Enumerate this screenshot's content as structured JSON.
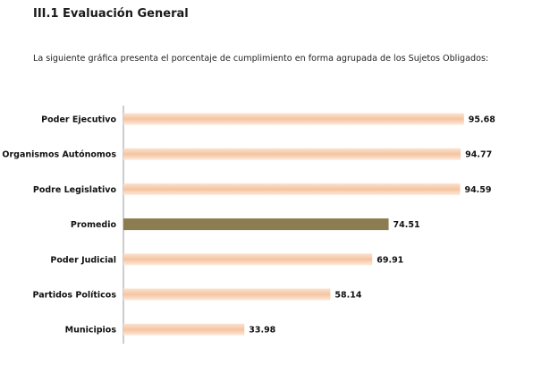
{
  "page": {
    "heading": "III.1 Evaluación General",
    "intro": "La siguiente gráfica presenta el porcentaje de cumplimiento en forma agrupada de los Sujetos  Obligados:"
  },
  "colors": {
    "bar": "#f5c7a6",
    "bar_highlight": "#8b7d4f",
    "axis": "#999999",
    "label": "#111111"
  },
  "chart_data": {
    "type": "bar",
    "orientation": "horizontal",
    "title": "",
    "xlabel": "",
    "ylabel": "",
    "xlim": [
      0,
      100
    ],
    "grid": false,
    "legend": "none",
    "categories": [
      "Poder Ejecutivo",
      "Organismos Autónomos",
      "Podre Legislativo",
      "Promedio",
      "Poder Judicial",
      "Partidos Políticos",
      "Municipios"
    ],
    "values": [
      95.68,
      94.77,
      94.59,
      74.51,
      69.91,
      58.14,
      33.98
    ],
    "value_labels": [
      "95.68",
      "94.77",
      "94.59",
      "74.51",
      "69.91",
      "58.14",
      "33.98"
    ],
    "highlight_category": "Promedio"
  }
}
